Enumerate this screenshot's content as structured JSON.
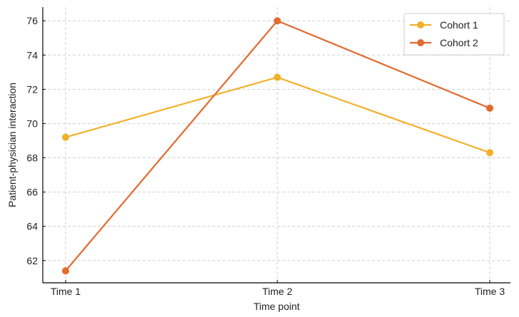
{
  "chart_data": {
    "type": "line",
    "title": "",
    "xlabel": "Time point",
    "ylabel": "Patient-physician interaction",
    "categories": [
      "Time 1",
      "Time 2",
      "Time 3"
    ],
    "ylim": [
      60.7,
      76.8
    ],
    "yticks": [
      62,
      64,
      66,
      68,
      70,
      72,
      74,
      76
    ],
    "grid": true,
    "legend_position": "top-right",
    "series": [
      {
        "name": "Cohort 1",
        "values": [
          69.2,
          72.7,
          68.3
        ],
        "color": "#F0B12A"
      },
      {
        "name": "Cohort 2",
        "values": [
          61.4,
          76.0,
          70.9
        ],
        "color": "#E36A2E"
      }
    ]
  }
}
